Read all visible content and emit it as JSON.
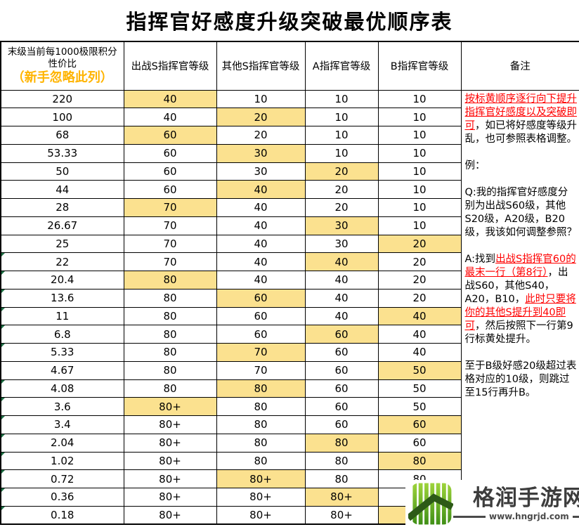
{
  "title": "指挥官好感度升级突破最优顺序表",
  "table": {
    "headers": {
      "ratio_line1": "末级当前每1000极限积分",
      "ratio_line2": "性价比",
      "ratio_note": "（新手忽略此列）",
      "s_active": "出战S指挥官等级",
      "s_other": "其他S指挥官等级",
      "a": "A指挥官等级",
      "b": "B指挥官等级",
      "remark": "备注"
    },
    "rows": [
      {
        "ratio": "220",
        "values": [
          "40",
          "10",
          "10",
          "10"
        ],
        "highlight": 0,
        "flag": false
      },
      {
        "ratio": "100",
        "values": [
          "40",
          "20",
          "10",
          "10"
        ],
        "highlight": 1,
        "flag": false
      },
      {
        "ratio": "68",
        "values": [
          "60",
          "20",
          "10",
          "10"
        ],
        "highlight": 0,
        "flag": false
      },
      {
        "ratio": "53.33",
        "values": [
          "60",
          "30",
          "10",
          "10"
        ],
        "highlight": 1,
        "flag": false
      },
      {
        "ratio": "50",
        "values": [
          "60",
          "30",
          "20",
          "10"
        ],
        "highlight": 2,
        "flag": false
      },
      {
        "ratio": "44",
        "values": [
          "60",
          "40",
          "20",
          "10"
        ],
        "highlight": 1,
        "flag": false
      },
      {
        "ratio": "28",
        "values": [
          "70",
          "40",
          "20",
          "10"
        ],
        "highlight": 0,
        "flag": false
      },
      {
        "ratio": "26.67",
        "values": [
          "70",
          "40",
          "30",
          "10"
        ],
        "highlight": 2,
        "flag": false
      },
      {
        "ratio": "25",
        "values": [
          "70",
          "40",
          "30",
          "20"
        ],
        "highlight": 3,
        "flag": false
      },
      {
        "ratio": "22",
        "values": [
          "70",
          "40",
          "40",
          "20"
        ],
        "highlight": 2,
        "flag": true
      },
      {
        "ratio": "20.4",
        "values": [
          "80",
          "40",
          "40",
          "20"
        ],
        "highlight": 0,
        "flag": true
      },
      {
        "ratio": "13.6",
        "values": [
          "80",
          "60",
          "40",
          "20"
        ],
        "highlight": 1,
        "flag": true
      },
      {
        "ratio": "11",
        "values": [
          "80",
          "60",
          "40",
          "40"
        ],
        "highlight": 3,
        "flag": true
      },
      {
        "ratio": "6.8",
        "values": [
          "80",
          "60",
          "60",
          "40"
        ],
        "highlight": 2,
        "flag": true
      },
      {
        "ratio": "5.33",
        "values": [
          "80",
          "70",
          "60",
          "40"
        ],
        "highlight": 1,
        "flag": true
      },
      {
        "ratio": "4.67",
        "values": [
          "80",
          "70",
          "60",
          "50"
        ],
        "highlight": 3,
        "flag": false
      },
      {
        "ratio": "4.08",
        "values": [
          "80",
          "80",
          "60",
          "50"
        ],
        "highlight": 1,
        "flag": true
      },
      {
        "ratio": "3.6",
        "values": [
          "80+",
          "80",
          "60",
          "50"
        ],
        "highlight": 0,
        "flag": true
      },
      {
        "ratio": "3.4",
        "values": [
          "80+",
          "80",
          "60",
          "60"
        ],
        "highlight": 3,
        "flag": true
      },
      {
        "ratio": "2.04",
        "values": [
          "80+",
          "80",
          "80",
          "60"
        ],
        "highlight": 2,
        "flag": true
      },
      {
        "ratio": "1.02",
        "values": [
          "80+",
          "80",
          "80",
          "80"
        ],
        "highlight": 3,
        "flag": true
      },
      {
        "ratio": "0.72",
        "values": [
          "80+",
          "80+",
          "80",
          "80"
        ],
        "highlight": 1,
        "flag": true
      },
      {
        "ratio": "0.36",
        "values": [
          "80+",
          "80+",
          "80+",
          "80"
        ],
        "highlight": 2,
        "flag": true
      },
      {
        "ratio": "0.18",
        "values": [
          "80+",
          "80+",
          "80+",
          "80+"
        ],
        "highlight": 3,
        "flag": true
      }
    ]
  },
  "notes": {
    "paragraphs": [
      {
        "segments": [
          {
            "text": "按标黄顺序逐行向下提升指挥官好感度以及突破即可",
            "style": "red-underline"
          },
          {
            "text": "，如已将好感度等级升乱，也可参照表格调整。",
            "style": "normal"
          }
        ]
      },
      {
        "segments": [
          {
            "text": "例：",
            "style": "normal"
          }
        ]
      },
      {
        "segments": [
          {
            "text": "Q:我的指挥官好感度分别为出战S60级，其他S20级，A20级，B20级，我该如何调整参照？",
            "style": "normal"
          }
        ]
      },
      {
        "segments": [
          {
            "text": "A:找到",
            "style": "normal"
          },
          {
            "text": "出战S指挥官60的最末一行（第8行）",
            "style": "red-underline"
          },
          {
            "text": "，出战S60，其他S40，A20，B10，",
            "style": "normal"
          },
          {
            "text": "此时只要将你的其他S提升到40即可",
            "style": "red-underline"
          },
          {
            "text": "，然后按照下一行第9行标黄处提升。",
            "style": "normal"
          }
        ]
      },
      {
        "segments": [
          {
            "text": "至于B级好感20级超过表格对应的10级，则跳过至15行再升B。",
            "style": "normal"
          }
        ]
      }
    ]
  },
  "watermark": {
    "site_name": "格润手游网",
    "site_url": "www.hngrjd.com"
  },
  "colors": {
    "highlight_yellow": "#FBE18F",
    "header_note_orange": "#FFB400",
    "note_red": "#FF0000",
    "flag_green": "#1E7145",
    "logo_green_light": "#9ED43B",
    "logo_green_dark": "#3F8F16",
    "logo_roof_green": "#2D5A17",
    "logo_text_gray": "#3D3D3D"
  }
}
